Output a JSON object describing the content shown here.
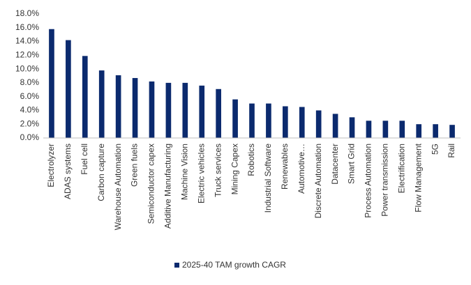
{
  "chart_data": {
    "type": "bar",
    "categories": [
      "Electrolyzer",
      "ADAS systems",
      "Fuel cell",
      "Carbon capture",
      "Warehouse Automation",
      "Green fuels",
      "Semiconductor capex",
      "Additive Manufacturing",
      "Machine Vision",
      "Electric vehicles",
      "Truck services",
      "Mining Capex",
      "Robotics",
      "Industrial Software",
      "Renewables",
      "Automotive…",
      "Discrete Automation",
      "Datacenter",
      "Smart Grid",
      "Process Automation",
      "Power transmission",
      "Electrification",
      "Flow Management",
      "5G",
      "Rail"
    ],
    "series": [
      {
        "name": "2025-40 TAM growth CAGR",
        "color": "#0b2a6e",
        "values": [
          15.8,
          14.2,
          11.9,
          9.8,
          9.1,
          8.7,
          8.2,
          8.0,
          8.0,
          7.6,
          7.1,
          5.6,
          5.0,
          5.0,
          4.6,
          4.5,
          4.0,
          3.5,
          3.0,
          2.5,
          2.5,
          2.5,
          2.0,
          2.0,
          1.9
        ]
      }
    ],
    "ylim": [
      0,
      18
    ],
    "yticks": [
      {
        "value": 0,
        "label": "0.0%"
      },
      {
        "value": 2,
        "label": "2.0%"
      },
      {
        "value": 4,
        "label": "4.0%"
      },
      {
        "value": 6,
        "label": "6.0%"
      },
      {
        "value": 8,
        "label": "8.0%"
      },
      {
        "value": 10,
        "label": "10.0%"
      },
      {
        "value": 12,
        "label": "12.0%"
      },
      {
        "value": 14,
        "label": "14.0%"
      },
      {
        "value": 16,
        "label": "16.0%"
      },
      {
        "value": 18,
        "label": "18.0%"
      }
    ],
    "grid": false,
    "legend": "bottom"
  }
}
